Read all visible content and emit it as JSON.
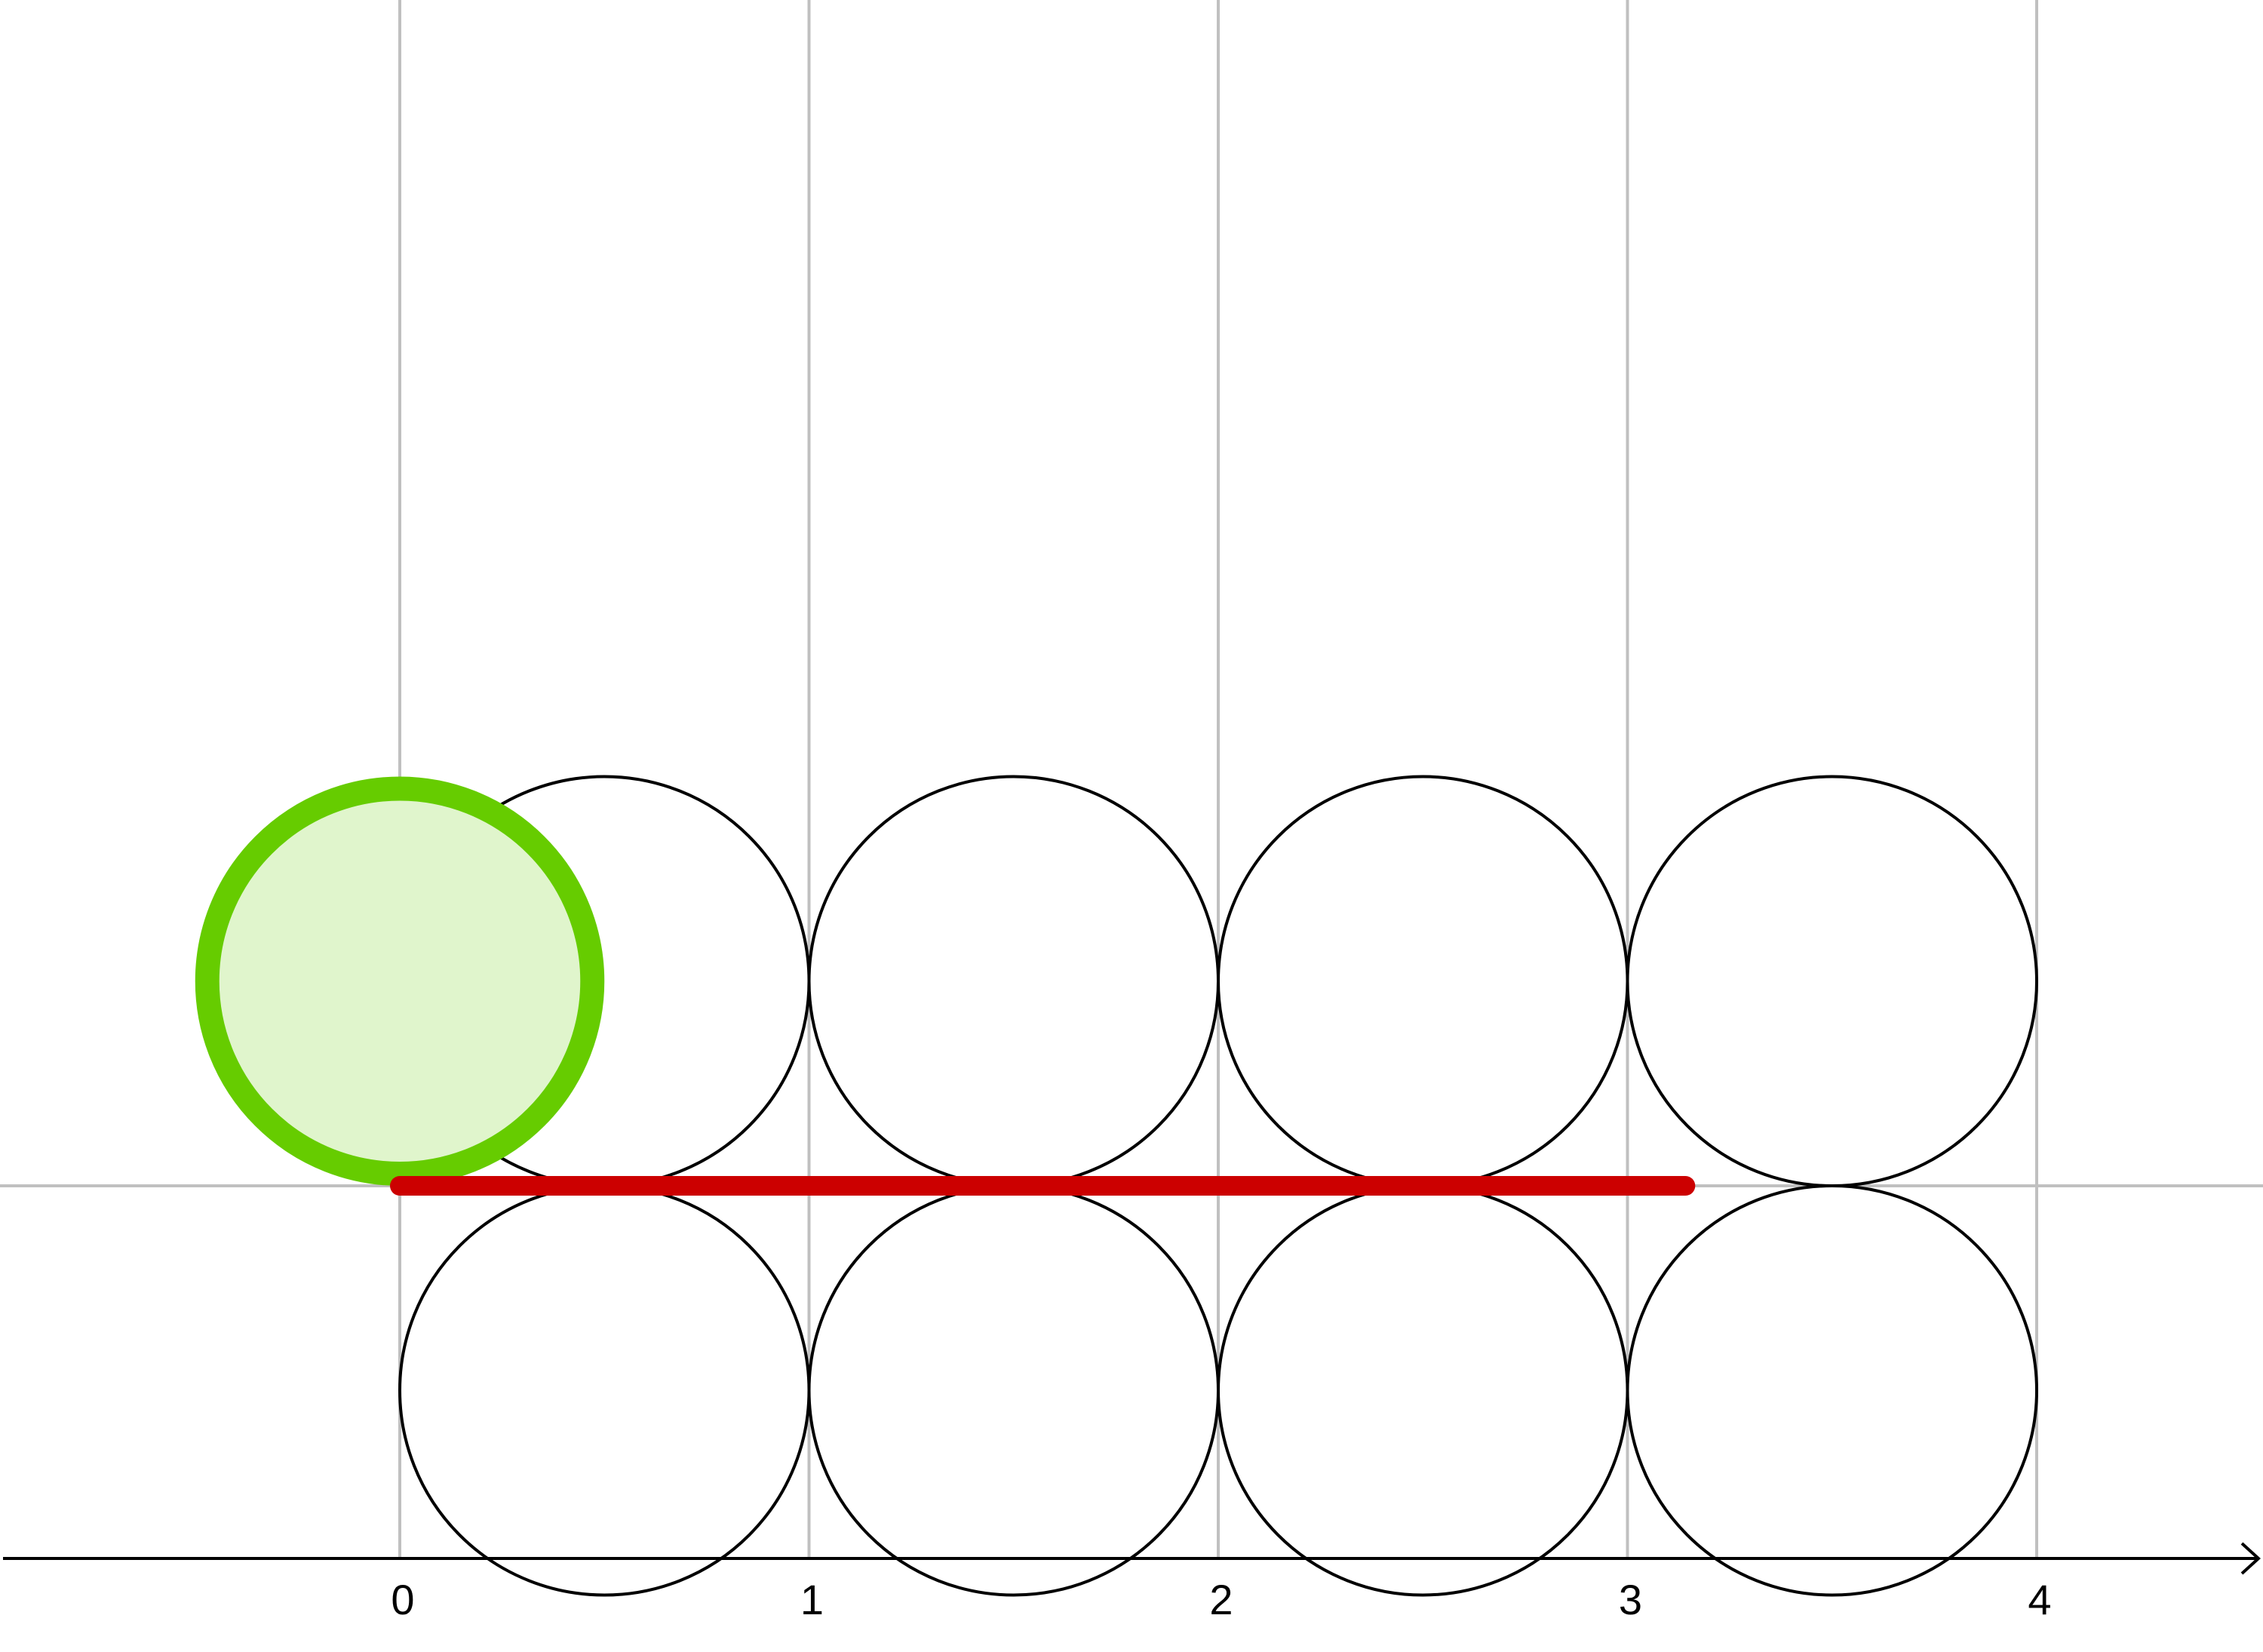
{
  "chart_data": {
    "type": "diagram",
    "x_axis": {
      "tick_labels": [
        "0",
        "1",
        "2",
        "3",
        "4"
      ],
      "tick_values": [
        0,
        1,
        2,
        3,
        4
      ],
      "range": [
        -0.97,
        4.55
      ]
    },
    "baseline_y": 0,
    "grid": true,
    "circles": [
      {
        "cx": 0.5,
        "cy": 0.5,
        "r": 0.5
      },
      {
        "cx": 1.5,
        "cy": 0.5,
        "r": 0.5
      },
      {
        "cx": 2.5,
        "cy": 0.5,
        "r": 0.5
      },
      {
        "cx": 3.5,
        "cy": 0.5,
        "r": 0.5
      },
      {
        "cx": 0.5,
        "cy": -0.5,
        "r": 0.5
      },
      {
        "cx": 1.5,
        "cy": -0.5,
        "r": 0.5
      },
      {
        "cx": 2.5,
        "cy": -0.5,
        "r": 0.5
      },
      {
        "cx": 3.5,
        "cy": -0.5,
        "r": 0.5
      }
    ],
    "rolling_circle": {
      "cx": 0,
      "cy": 0.5,
      "r": 0.5
    },
    "segment": {
      "x_start": 0,
      "x_end": 3.1416
    },
    "colors": {
      "grid": "#c0c0c0",
      "circle_stroke": "#000000",
      "rolling_stroke": "#66cc00",
      "rolling_fill": "#e0f5cc",
      "segment": "#cc0000",
      "axis": "#000000"
    }
  }
}
